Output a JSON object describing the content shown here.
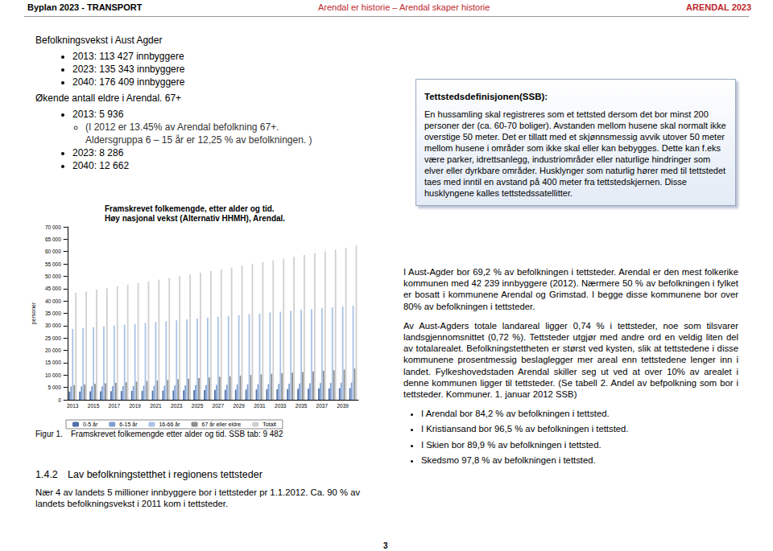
{
  "header": {
    "left": "Byplan 2023 - TRANSPORT",
    "center": "Arendal er historie – Arendal skaper historie",
    "right": "ARENDAL 2023"
  },
  "population": {
    "title": "Befolkningsvekst i Aust Agder",
    "items": [
      "2013: 113 427 innbyggere",
      "2023: 135 343 innbyggere",
      "2040: 176 409 innbyggere"
    ],
    "elderly_title": "Økende antall eldre i Arendal. 67+",
    "elderly_items": [
      {
        "text": "2013: 5 936",
        "sub": [
          "(I 2012 er 13.45% av Arendal befolkning 67+.",
          "Aldersgruppa 6 – 15 år er 12,25 % av befolkningen. )"
        ]
      },
      {
        "text": "2023: 8 286"
      },
      {
        "text": "2040: 12 662"
      }
    ]
  },
  "chart_data": {
    "type": "bar",
    "title": "Framskrevet folkemengde, etter alder og tid.",
    "subtitle": "Høy nasjonal vekst (Alternativ HHMH), Arendal.",
    "y_label": "personer",
    "categories": [
      "2013",
      null,
      "2015",
      null,
      "2017",
      null,
      "2019",
      null,
      "2021",
      null,
      "2023",
      null,
      "2025",
      null,
      "2027",
      null,
      "2029",
      null,
      "2031",
      null,
      "2033",
      null,
      "2035",
      null,
      "2037",
      null,
      "2039",
      null
    ],
    "series": [
      {
        "name": "0-5 år",
        "color": "#4f6fa8",
        "values": [
          3300,
          3340,
          3380,
          3420,
          3470,
          3520,
          3570,
          3620,
          3670,
          3720,
          3770,
          3820,
          3870,
          3920,
          3970,
          4020,
          4070,
          4120,
          4170,
          4220,
          4280,
          4340,
          4400,
          4460,
          4520,
          4580,
          4640,
          4700
        ]
      },
      {
        "name": "6-15 år",
        "color": "#7f9fd0",
        "values": [
          5400,
          5420,
          5450,
          5480,
          5520,
          5560,
          5600,
          5650,
          5700,
          5750,
          5800,
          5860,
          5920,
          5980,
          6040,
          6100,
          6170,
          6240,
          6310,
          6380,
          6450,
          6530,
          6610,
          6690,
          6770,
          6850,
          6930,
          7010
        ]
      },
      {
        "name": "16-66 år",
        "color": "#a9c2e6",
        "values": [
          28700,
          29000,
          29350,
          29700,
          30050,
          30400,
          30750,
          31100,
          31450,
          31800,
          32150,
          32500,
          32850,
          33200,
          33550,
          33900,
          34250,
          34600,
          34950,
          35300,
          35650,
          36000,
          36350,
          36700,
          37050,
          37400,
          37750,
          38100
        ]
      },
      {
        "name": "67 år eller eldre",
        "color": "#8c8c8c",
        "values": [
          5936,
          6150,
          6400,
          6640,
          6880,
          7120,
          7350,
          7580,
          7810,
          8050,
          8286,
          8530,
          8780,
          9030,
          9290,
          9540,
          9790,
          10040,
          10290,
          10530,
          10780,
          11020,
          11260,
          11500,
          11730,
          11970,
          12210,
          12662
        ]
      },
      {
        "name": "Totalt",
        "color": "#cfcfcf",
        "values": [
          43336,
          43910,
          44580,
          45240,
          45920,
          46600,
          47270,
          47950,
          48630,
          49320,
          50006,
          50710,
          51420,
          52130,
          52850,
          53560,
          54280,
          55000,
          55720,
          56430,
          57160,
          57890,
          58620,
          59350,
          60070,
          60800,
          61530,
          62472
        ]
      }
    ],
    "ylim": [
      0,
      70000
    ],
    "yticks": [
      0,
      {
        "value": 5000,
        "label": "5 000"
      },
      {
        "value": 10000,
        "label": "10 000"
      },
      {
        "value": 15000,
        "label": "15 000"
      },
      {
        "value": 20000,
        "label": "20 000"
      },
      {
        "value": 25000,
        "label": "25 000"
      },
      {
        "value": 30000,
        "label": "30 000"
      },
      {
        "value": 35000,
        "label": "35 000"
      },
      {
        "value": 40000,
        "label": "40 000"
      },
      {
        "value": 45000,
        "label": "45 000"
      },
      {
        "value": 50000,
        "label": "50 000"
      },
      {
        "value": 55000,
        "label": "55 000"
      },
      {
        "value": 60000,
        "label": "60 000"
      },
      {
        "value": 65000,
        "label": "65 000"
      },
      {
        "value": 70000,
        "label": "70 000"
      }
    ],
    "grid": false,
    "legend": "bottom"
  },
  "figure_caption": {
    "label": "Figur 1.",
    "text": "Framskrevet folkemengde etter alder og tid.  SSB tab: 9 482"
  },
  "definition_box": {
    "title": "Tettstedsdefinisjonen(SSB):",
    "text": "En hussamling skal registreres som et tettsted dersom det bor minst 200 personer der (ca. 60-70 boliger). Avstanden mellom husene skal normalt ikke overstige 50 meter. Det er tillatt med et skjønnsmessig avvik utover 50 meter mellom husene i områder som ikke skal eller kan bebygges. Dette kan f.eks være parker, idrettsanlegg, industriområder eller naturlige hindringer som elver eller dyrkbare områder. Husklynger som naturlig hører med til tettstedet taes med inntil en avstand på 400 meter fra tettstedskjernen. Disse husklyngene kalles tettstedssatellitter."
  },
  "paragraphs": [
    "I Aust-Agder bor 69,2 % av befolkningen i tettsteder. Arendal er den mest folkerike kommunen med 42 239 innbyggere (2012). Nærmere 50 % av befolkningen i fylket er bosatt i kommunene Arendal og Grimstad. I begge disse kommunene bor over 80% av befolkningen i tettsteder.",
    "Av Aust-Agders totale landareal ligger 0,74 % i tettsteder, noe som tilsvarer landsgjennomsnittet (0,72 %). Tettsteder utgjør med andre ord en veldig liten del av totalarealet. Befolkningstettheten er størst ved kysten, slik at tettstedene i disse kommunene prosentmessig beslaglegger mer areal enn tettstedene lenger inn i landet. Fylkeshovedstaden Arendal skiller seg ut ved at over 10% av arealet i denne kommunen ligger til tettsteder. (Se tabell 2. Andel av befpolkning som bor i tettsteder. Kommuner. 1. januar 2012 SSB)"
  ],
  "bullets": [
    "I Arendal bor 84,2 % av befolkningen i tettsted.",
    "I Kristiansand bor 96,5 % av befolkningen i tettsted.",
    "I Skien bor 89,9 % av befolkningen i tettsted.",
    "Skedsmo 97,8 % av befolkningen i tettsted."
  ],
  "section": {
    "number": "1.4.2",
    "title": "Lav befolkningstetthet i regionens tettsteder",
    "text": "Nær 4 av landets 5 millioner innbyggere bor i tettsteder pr 1.1.2012. Ca. 90 % av landets befolkningsvekst i 2011 kom i tettsteder."
  },
  "page_number": "3"
}
